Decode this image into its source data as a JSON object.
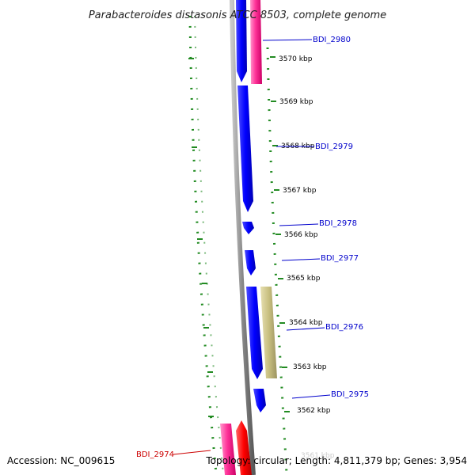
{
  "map": {
    "title": "Parabacteroides distasonis ATCC 8503, complete genome",
    "accession": "Accession: NC_009615",
    "topology": "Topology: circular; Length: 4,811,379 bp; Genes: 3,954"
  },
  "scale": {
    "ticks": [
      "3570 kbp",
      "3569 kbp",
      "3568 kbp",
      "3567 kbp",
      "3566 kbp",
      "3565 kbp",
      "3564 kbp",
      "3563 kbp",
      "3562 kbp",
      "3561 kbp"
    ]
  },
  "genes": [
    {
      "id": "BDI_2980",
      "color": "#0000cc"
    },
    {
      "id": "BDI_2979",
      "color": "#0000cc"
    },
    {
      "id": "BDI_2978",
      "color": "#0000cc"
    },
    {
      "id": "BDI_2977",
      "color": "#0000cc"
    },
    {
      "id": "BDI_2976",
      "color": "#0000cc"
    },
    {
      "id": "BDI_2975",
      "color": "#0000cc"
    },
    {
      "id": "BDI_2974",
      "color": "#cc0000"
    }
  ],
  "colors": {
    "cds_forward": "#1a1aff",
    "feature_pink": "#ff3399",
    "feature_red": "#ff1a1a",
    "feature_khaki": "#c8bf80",
    "backbone": "#888888",
    "dots": "#228b22",
    "label_blue": "#0000cc",
    "label_red": "#cc0000"
  }
}
